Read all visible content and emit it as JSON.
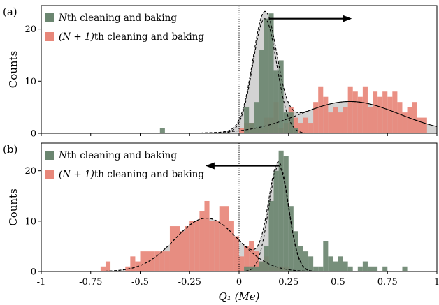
{
  "chart_data": [
    {
      "type": "histogram",
      "panel_label": "(a)",
      "xlabel": "Q₁ (Me)",
      "ylabel": "Counts",
      "xlim": [
        -1,
        1
      ],
      "ylim": [
        0,
        24.5
      ],
      "yticks": [
        0,
        10,
        20
      ],
      "bin_width": 0.025,
      "vertical_line_x": 0,
      "arrow": {
        "from_x": 0.15,
        "to_x": 0.57,
        "y": 22
      },
      "legend_position": "top-left",
      "series": [
        {
          "name": "Nth cleaning and baking",
          "name_prefix": "N",
          "name_rest": "th cleaning and baking",
          "color": "#6b8670",
          "bins": [
            [
              -0.4,
              1
            ],
            [
              0.05,
              2
            ],
            [
              0.025,
              5
            ],
            [
              0.075,
              6
            ],
            [
              0.1,
              16
            ],
            [
              0.125,
              22
            ],
            [
              0.15,
              23
            ],
            [
              0.175,
              12
            ],
            [
              0.2,
              14
            ],
            [
              0.225,
              4
            ],
            [
              0.25,
              4
            ],
            [
              0.275,
              1
            ]
          ],
          "fit": {
            "amplitude": 22,
            "mean": 0.13,
            "sigma": 0.06
          }
        },
        {
          "name": "(N+1)th cleaning and baking",
          "name_prefix": "(N + 1)",
          "name_rest": "th cleaning and baking",
          "color": "#e8877a",
          "bins": [
            [
              0,
              1
            ],
            [
              0.025,
              2
            ],
            [
              0.05,
              2
            ],
            [
              0.075,
              1
            ],
            [
              0.1,
              1
            ],
            [
              0.125,
              3
            ],
            [
              0.15,
              3
            ],
            [
              0.175,
              6
            ],
            [
              0.2,
              1
            ],
            [
              0.225,
              2
            ],
            [
              0.25,
              5
            ],
            [
              0.275,
              3
            ],
            [
              0.3,
              2
            ],
            [
              0.325,
              3
            ],
            [
              0.35,
              2
            ],
            [
              0.375,
              6
            ],
            [
              0.4,
              9
            ],
            [
              0.425,
              7
            ],
            [
              0.45,
              4
            ],
            [
              0.475,
              5
            ],
            [
              0.5,
              4
            ],
            [
              0.525,
              5
            ],
            [
              0.55,
              9
            ],
            [
              0.575,
              8
            ],
            [
              0.6,
              7
            ],
            [
              0.625,
              9
            ],
            [
              0.65,
              5
            ],
            [
              0.675,
              8
            ],
            [
              0.7,
              7
            ],
            [
              0.725,
              8
            ],
            [
              0.75,
              7
            ],
            [
              0.775,
              8
            ],
            [
              0.8,
              6
            ],
            [
              0.825,
              4
            ],
            [
              0.85,
              5
            ],
            [
              0.875,
              6
            ],
            [
              0.9,
              3
            ],
            [
              0.925,
              3
            ]
          ],
          "fit": {
            "amplitude": 6.1,
            "mean": 0.56,
            "sigma": 0.25
          }
        }
      ]
    },
    {
      "type": "histogram",
      "panel_label": "(b)",
      "xlabel": "Q₁ (Me)",
      "ylabel": "Counts",
      "xlim": [
        -1,
        1
      ],
      "ylim": [
        0,
        25.5
      ],
      "yticks": [
        0,
        10,
        20
      ],
      "xticks": [
        -1,
        -0.75,
        -0.5,
        -0.25,
        0,
        0.25,
        0.5,
        0.75,
        1
      ],
      "xtick_labels": [
        "-1",
        "-0.75",
        "-0.5",
        "-0.25",
        "0",
        "0.25",
        "0.5",
        "0.75",
        "1"
      ],
      "bin_width": 0.025,
      "vertical_line_x": 0,
      "arrow": {
        "from_x": 0.2,
        "to_x": -0.17,
        "y": 21
      },
      "legend_position": "top-left",
      "series": [
        {
          "name": "Nth cleaning and baking",
          "name_prefix": "N",
          "name_rest": "th cleaning and baking",
          "color": "#6b8670",
          "bins": [
            [
              0.025,
              1
            ],
            [
              0.05,
              1
            ],
            [
              0.075,
              1
            ],
            [
              0.1,
              2
            ],
            [
              0.125,
              5
            ],
            [
              0.15,
              14
            ],
            [
              0.175,
              20
            ],
            [
              0.2,
              24
            ],
            [
              0.225,
              23
            ],
            [
              0.25,
              13
            ],
            [
              0.275,
              8
            ],
            [
              0.3,
              5
            ],
            [
              0.325,
              4
            ],
            [
              0.35,
              3
            ],
            [
              0.375,
              1
            ],
            [
              0.4,
              1
            ],
            [
              0.425,
              6
            ],
            [
              0.45,
              3
            ],
            [
              0.475,
              2
            ],
            [
              0.5,
              3
            ],
            [
              0.525,
              2
            ],
            [
              0.55,
              1
            ],
            [
              0.6,
              1
            ],
            [
              0.625,
              2
            ],
            [
              0.65,
              1
            ],
            [
              0.675,
              1
            ],
            [
              0.725,
              1
            ],
            [
              0.825,
              1
            ]
          ],
          "fit": {
            "amplitude": 21,
            "mean": 0.2,
            "sigma": 0.05
          }
        },
        {
          "name": "(N+1)th cleaning and baking",
          "name_prefix": "(N + 1)",
          "name_rest": "th cleaning and baking",
          "color": "#e8877a",
          "bins": [
            [
              -0.7,
              1
            ],
            [
              -0.675,
              2
            ],
            [
              -0.575,
              1
            ],
            [
              -0.55,
              3
            ],
            [
              -0.525,
              2
            ],
            [
              -0.5,
              4
            ],
            [
              -0.475,
              4
            ],
            [
              -0.45,
              4
            ],
            [
              -0.425,
              4
            ],
            [
              -0.4,
              4
            ],
            [
              -0.375,
              4
            ],
            [
              -0.35,
              9
            ],
            [
              -0.325,
              9
            ],
            [
              -0.3,
              8
            ],
            [
              -0.275,
              9
            ],
            [
              -0.25,
              10
            ],
            [
              -0.225,
              10
            ],
            [
              -0.2,
              12
            ],
            [
              -0.175,
              14
            ],
            [
              -0.15,
              10
            ],
            [
              -0.125,
              10
            ],
            [
              -0.1,
              13
            ],
            [
              -0.075,
              13
            ],
            [
              -0.05,
              10
            ],
            [
              -0.025,
              7
            ],
            [
              0,
              3
            ],
            [
              0.025,
              5
            ],
            [
              0.05,
              6
            ],
            [
              0.075,
              4
            ],
            [
              0.1,
              2
            ],
            [
              0.125,
              3
            ],
            [
              0.15,
              1
            ],
            [
              0.175,
              1
            ],
            [
              0.2,
              1
            ],
            [
              0.225,
              1
            ]
          ],
          "fit": {
            "amplitude": 10.6,
            "mean": -0.165,
            "sigma": 0.16
          }
        }
      ]
    }
  ]
}
